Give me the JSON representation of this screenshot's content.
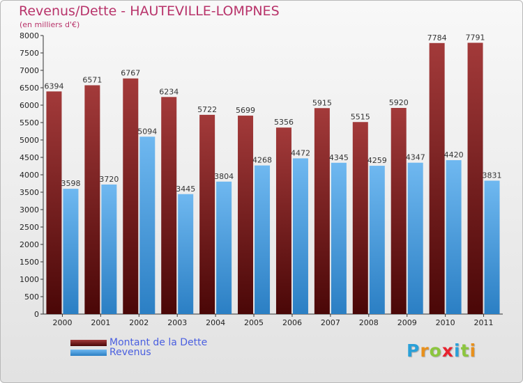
{
  "chart_data": {
    "type": "bar",
    "title": "Revenus/Dette - HAUTEVILLE-LOMPNES",
    "subtitle": "(en milliers d'€)",
    "categories": [
      "2000",
      "2001",
      "2002",
      "2003",
      "2004",
      "2005",
      "2006",
      "2007",
      "2008",
      "2009",
      "2010",
      "2011"
    ],
    "series": [
      {
        "name": "Montant de la Dette",
        "color": "#7a1818",
        "values": [
          6394,
          6571,
          6767,
          6234,
          5722,
          5699,
          5356,
          5915,
          5515,
          5920,
          7784,
          7791
        ]
      },
      {
        "name": "Revenus",
        "color": "#4da3e6",
        "values": [
          3598,
          3720,
          5094,
          3445,
          3804,
          4268,
          4472,
          4345,
          4259,
          4347,
          4420,
          3831
        ]
      }
    ],
    "ylim": [
      0,
      8000
    ],
    "ytick_step": 500,
    "grid": false,
    "legend_position": "bottom-left"
  },
  "logo_letters": [
    {
      "ch": "P",
      "color": "#2aa0d8"
    },
    {
      "ch": "r",
      "color": "#e8901c"
    },
    {
      "ch": "o",
      "color": "#8cc63e"
    },
    {
      "ch": "x",
      "color": "#e8232f"
    },
    {
      "ch": "i",
      "color": "#2aa0d8"
    },
    {
      "ch": "t",
      "color": "#8cc63e"
    },
    {
      "ch": "i",
      "color": "#e8901c"
    }
  ]
}
